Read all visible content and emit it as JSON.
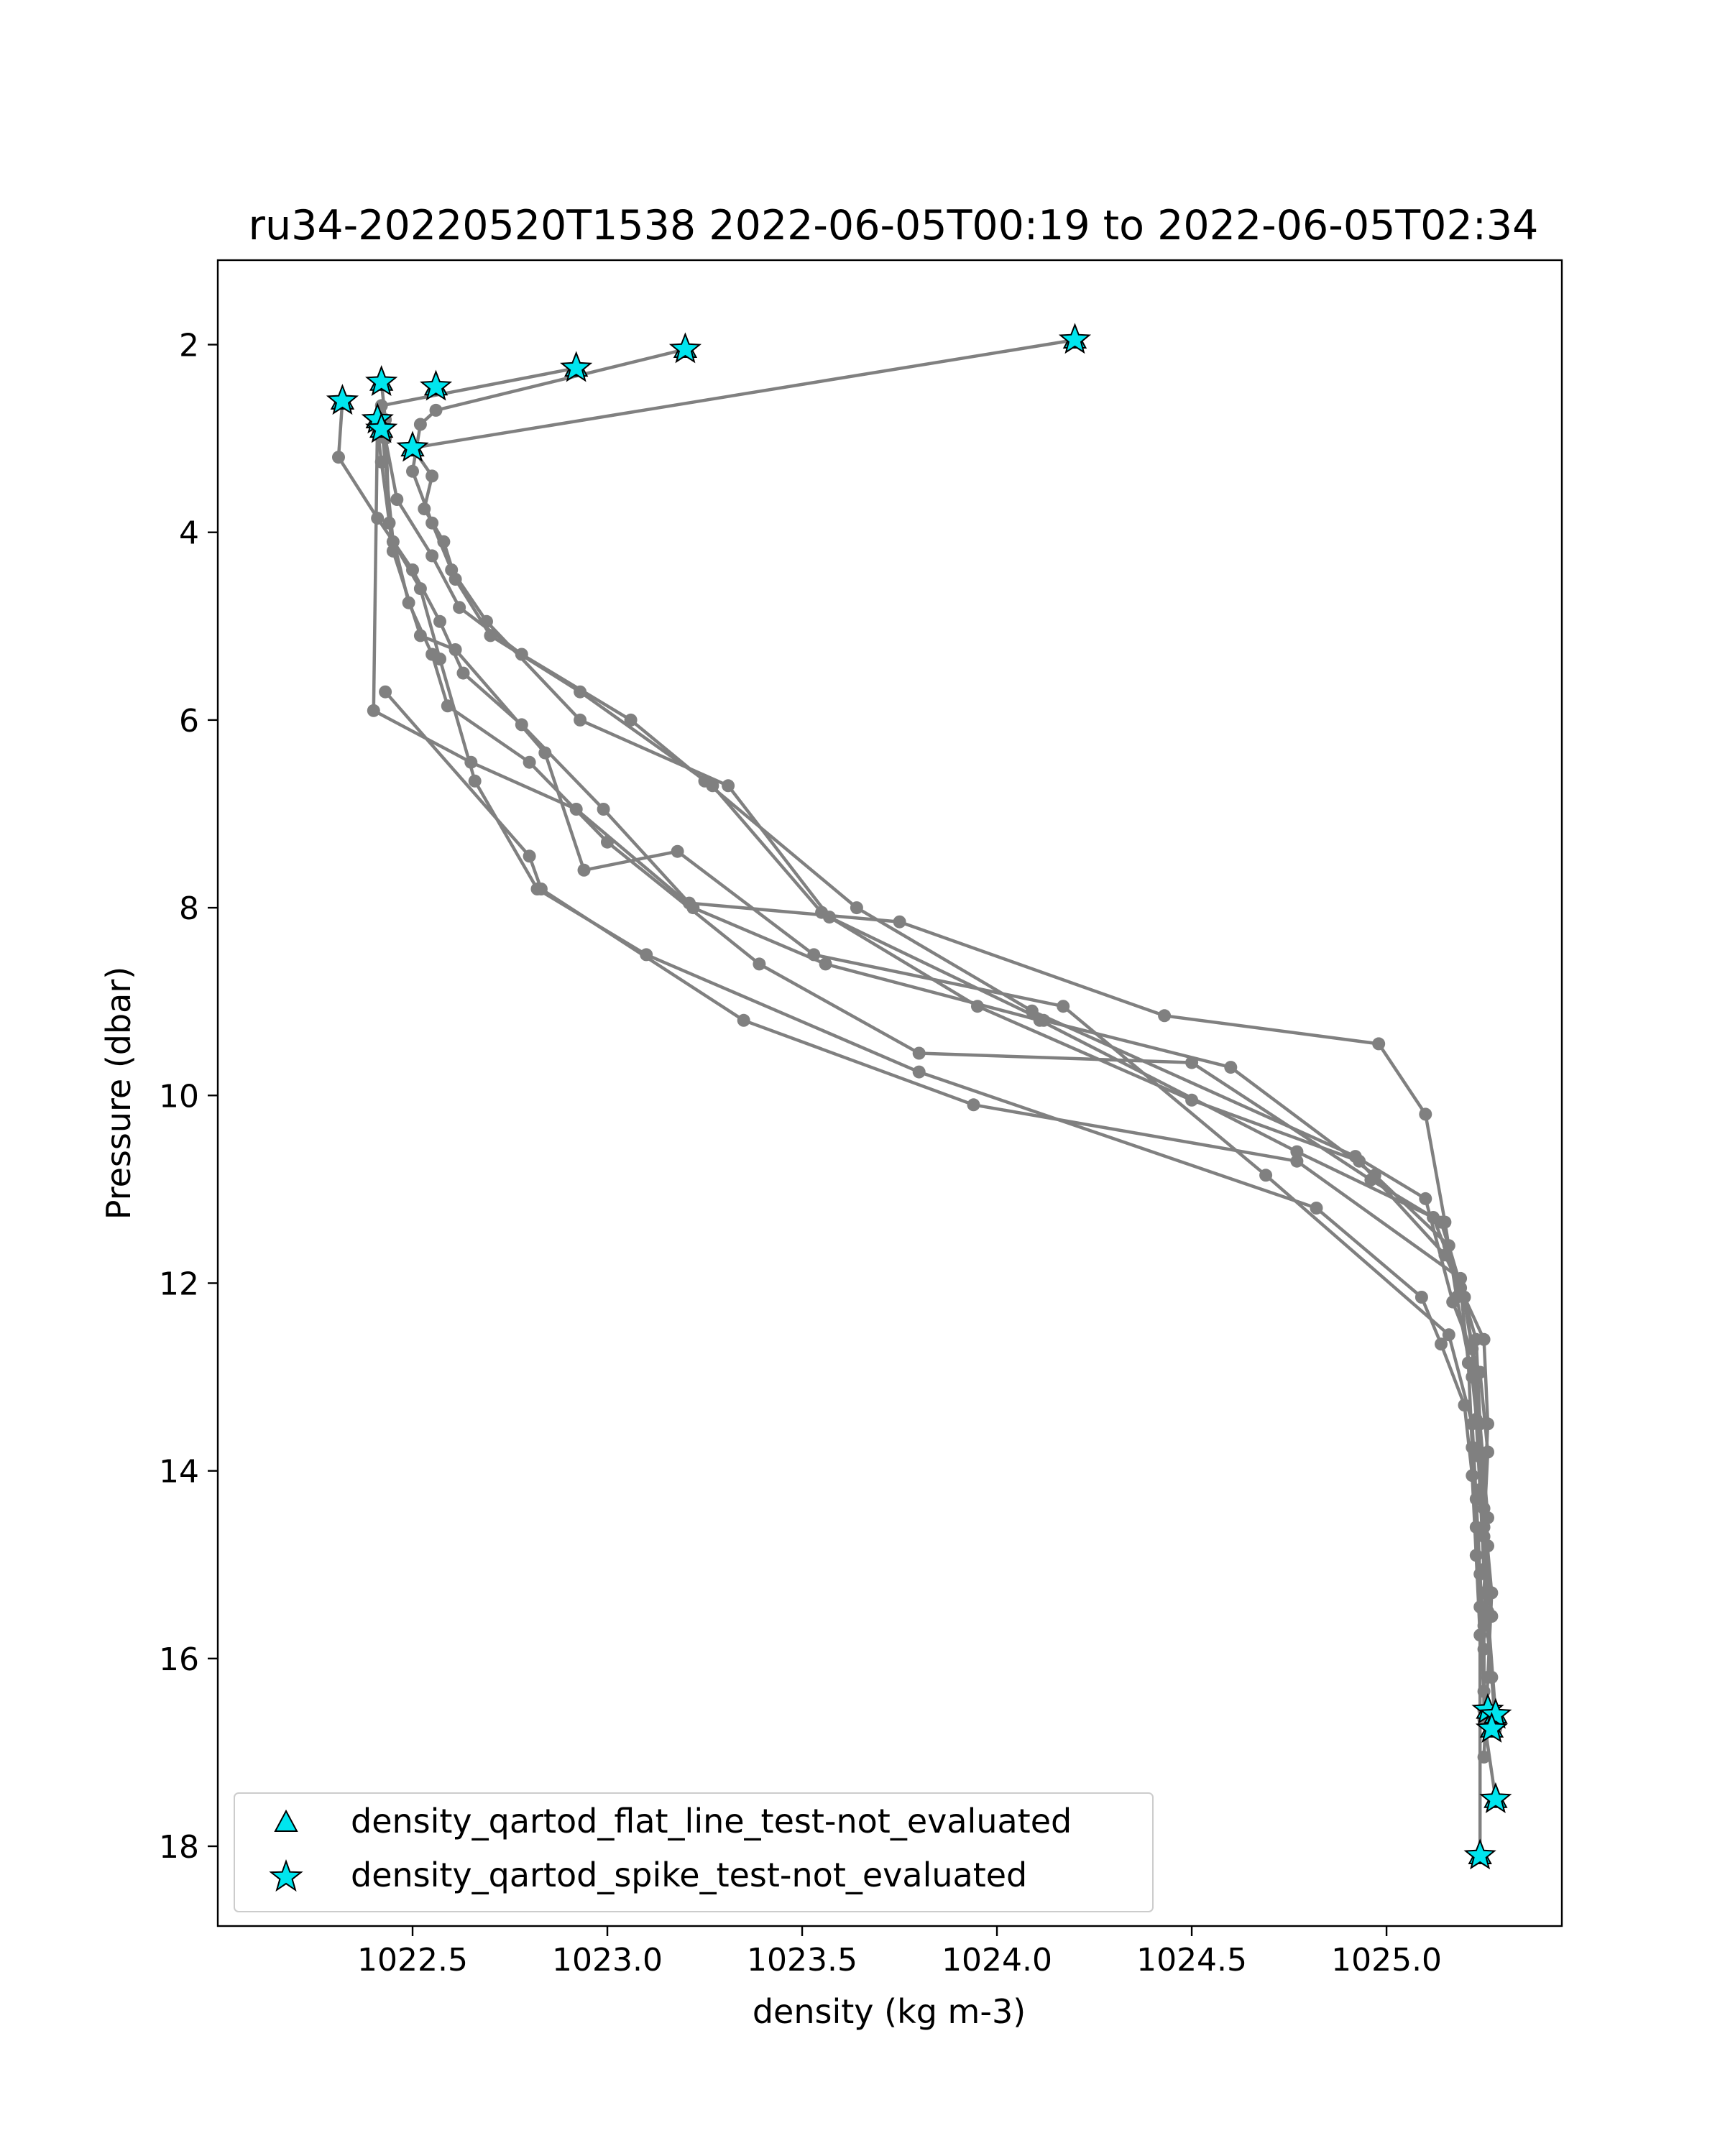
{
  "chart_data": {
    "type": "line",
    "title": "ru34-20220520T1538 2022-06-05T00:19 to 2022-06-05T02:34",
    "xlabel": "density (kg m-3)",
    "ylabel": "Pressure (dbar)",
    "xlim": [
      1022.0,
      1025.45
    ],
    "ylim": [
      18.85,
      1.1
    ],
    "y_inverted": true,
    "xticks": [
      1022.5,
      1023.0,
      1023.5,
      1024.0,
      1024.5,
      1025.0
    ],
    "xtick_labels": [
      "1022.5",
      "1023.0",
      "1023.5",
      "1024.0",
      "1024.5",
      "1025.0"
    ],
    "yticks": [
      2,
      4,
      6,
      8,
      10,
      12,
      14,
      16,
      18
    ],
    "ytick_labels": [
      "2",
      "4",
      "6",
      "8",
      "10",
      "12",
      "14",
      "16",
      "18"
    ],
    "grid": false,
    "line_color": "#808080",
    "marker_color": "#808080",
    "flag_color": "#00e5ee",
    "legend_position": "lower-left",
    "legend": [
      {
        "label": "density_qartod_flat_line_test-not_evaluated",
        "marker": "triangle"
      },
      {
        "label": "density_qartod_spike_test-not_evaluated",
        "marker": "star"
      }
    ],
    "series": [
      {
        "x": [
          1024.2,
          1022.5,
          1022.55,
          1022.53,
          1022.58,
          1022.61,
          1022.7,
          1022.93,
          1023.27,
          1023.55,
          1023.95,
          1024.5,
          1024.93,
          1025.15,
          1025.25,
          1025.26,
          1025.25,
          1025.27,
          1025.26,
          1025.25
        ],
        "y": [
          1.95,
          3.1,
          3.4,
          3.75,
          4.1,
          4.5,
          5.1,
          5.7,
          6.7,
          8.05,
          9.05,
          10.05,
          10.7,
          11.7,
          12.6,
          13.5,
          14.4,
          15.3,
          16.2,
          17.05
        ]
      },
      {
        "x": [
          1023.2,
          1022.56,
          1022.52,
          1022.5,
          1022.55,
          1022.6,
          1022.69,
          1022.93,
          1023.31,
          1023.57,
          1024.12,
          1024.6,
          1024.97,
          1025.16,
          1025.23,
          1025.24,
          1025.26,
          1025.25,
          1025.27,
          1025.28
        ],
        "y": [
          2.05,
          2.7,
          2.85,
          3.35,
          3.9,
          4.4,
          4.95,
          6.0,
          6.7,
          8.1,
          9.2,
          9.7,
          10.85,
          11.6,
          12.6,
          13.5,
          14.5,
          15.3,
          16.2,
          16.75
        ]
      },
      {
        "x": [
          1022.92,
          1022.42,
          1022.43,
          1022.46,
          1022.55,
          1022.62,
          1022.78,
          1023.06,
          1023.25,
          1023.64,
          1024.09,
          1024.92,
          1025.1,
          1025.17,
          1025.24,
          1025.26,
          1025.25,
          1025.26,
          1025.28
        ],
        "y": [
          2.25,
          2.65,
          3.0,
          3.65,
          4.25,
          4.8,
          5.3,
          6.0,
          6.65,
          8.0,
          9.1,
          10.65,
          11.1,
          12.2,
          12.95,
          13.8,
          14.6,
          15.5,
          16.6
        ]
      },
      {
        "x": [
          1022.32,
          1022.31,
          1022.41,
          1022.5,
          1022.57,
          1022.63,
          1022.78,
          1022.99,
          1023.21,
          1023.75,
          1024.43,
          1024.98,
          1025.1,
          1025.15,
          1025.18,
          1025.22,
          1025.24,
          1025.25,
          1025.27
        ],
        "y": [
          2.6,
          3.2,
          3.85,
          4.4,
          4.95,
          5.5,
          6.05,
          6.95,
          7.95,
          8.15,
          9.15,
          9.45,
          10.2,
          11.35,
          12.15,
          13.0,
          13.8,
          14.7,
          15.55
        ]
      },
      {
        "x": [
          1022.42,
          1022.43,
          1022.44,
          1022.49,
          1022.55,
          1022.59,
          1022.8,
          1023.0,
          1023.39,
          1023.8,
          1024.5,
          1024.96,
          1025.14,
          1025.2,
          1025.23,
          1025.24,
          1025.26,
          1025.25,
          1025.25
        ],
        "y": [
          2.4,
          2.8,
          3.9,
          4.75,
          5.3,
          5.85,
          6.45,
          7.3,
          8.6,
          9.55,
          9.65,
          10.9,
          11.35,
          12.15,
          12.95,
          13.85,
          14.8,
          15.65,
          16.55
        ]
      },
      {
        "x": [
          1022.41,
          1022.42,
          1022.45,
          1022.52,
          1022.61,
          1022.84,
          1022.94,
          1023.18,
          1023.53,
          1024.17,
          1024.69,
          1025.16,
          1025.22,
          1025.23,
          1025.24,
          1025.25,
          1025.25,
          1025.28
        ],
        "y": [
          2.9,
          3.25,
          4.2,
          5.1,
          5.25,
          6.35,
          7.6,
          7.4,
          8.5,
          9.05,
          10.85,
          12.55,
          13.5,
          14.3,
          15.1,
          15.9,
          16.65,
          17.5
        ]
      },
      {
        "x": [
          1022.42,
          1022.45,
          1022.52,
          1022.57,
          1022.66,
          1022.82,
          1023.1,
          1023.8,
          1024.82,
          1025.09,
          1025.14,
          1025.2,
          1025.22,
          1025.23,
          1025.24,
          1025.24
        ],
        "y": [
          2.85,
          4.1,
          4.6,
          5.35,
          6.65,
          7.8,
          8.5,
          9.75,
          11.2,
          12.15,
          12.65,
          13.3,
          14.05,
          14.9,
          15.75,
          18.1
        ]
      },
      {
        "x": [
          1022.41,
          1022.4,
          1022.65,
          1022.92,
          1023.22,
          1023.56,
          1024.11,
          1024.77,
          1025.12,
          1025.19,
          1025.21,
          1025.22,
          1025.23,
          1025.24,
          1025.25
        ],
        "y": [
          2.8,
          5.9,
          6.45,
          6.95,
          8.0,
          8.6,
          9.2,
          10.6,
          11.3,
          12.05,
          12.85,
          13.75,
          14.6,
          15.45,
          16.35
        ]
      },
      {
        "x": [
          1022.43,
          1022.8,
          1022.83,
          1023.35,
          1023.94,
          1024.77,
          1025.19,
          1025.22,
          1025.23,
          1025.24,
          1025.25
        ],
        "y": [
          5.7,
          7.45,
          7.8,
          9.2,
          10.1,
          10.7,
          11.95,
          12.7,
          13.45,
          14.2,
          15.05
        ]
      }
    ],
    "flagged_points": [
      {
        "x": 1024.2,
        "y": 1.95
      },
      {
        "x": 1023.2,
        "y": 2.05
      },
      {
        "x": 1022.92,
        "y": 2.25
      },
      {
        "x": 1022.56,
        "y": 2.45
      },
      {
        "x": 1022.42,
        "y": 2.4
      },
      {
        "x": 1022.32,
        "y": 2.6
      },
      {
        "x": 1022.41,
        "y": 2.8
      },
      {
        "x": 1022.42,
        "y": 2.9
      },
      {
        "x": 1022.5,
        "y": 3.1
      },
      {
        "x": 1025.26,
        "y": 16.55
      },
      {
        "x": 1025.28,
        "y": 16.6
      },
      {
        "x": 1025.27,
        "y": 16.75
      },
      {
        "x": 1025.28,
        "y": 17.5
      },
      {
        "x": 1025.24,
        "y": 18.1
      }
    ]
  }
}
